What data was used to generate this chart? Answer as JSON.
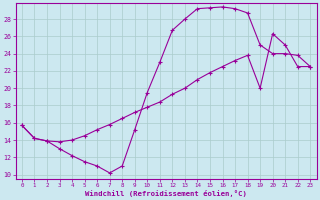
{
  "bg_color": "#cce8f0",
  "line_color": "#990099",
  "grid_color": "#aacccc",
  "xlim": [
    -0.5,
    23.5
  ],
  "ylim": [
    9.5,
    29.8
  ],
  "xticks": [
    0,
    1,
    2,
    3,
    4,
    5,
    6,
    7,
    8,
    9,
    10,
    11,
    12,
    13,
    14,
    15,
    16,
    17,
    18,
    19,
    20,
    21,
    22,
    23
  ],
  "yticks": [
    10,
    12,
    14,
    16,
    18,
    20,
    22,
    24,
    26,
    28
  ],
  "xlabel": "Windchill (Refroidissement éolien,°C)",
  "curve1_x": [
    0,
    1,
    2,
    3,
    4,
    5,
    6,
    7,
    8,
    9,
    10,
    11,
    12,
    13,
    14,
    15,
    16,
    17,
    18,
    19,
    20,
    21,
    22,
    23
  ],
  "curve1_y": [
    15.7,
    14.2,
    13.9,
    13.0,
    12.2,
    11.5,
    11.0,
    10.2,
    11.0,
    15.2,
    19.5,
    23.0,
    26.7,
    28.0,
    29.2,
    29.3,
    29.4,
    29.2,
    28.7,
    25.0,
    24.0,
    24.0,
    23.8,
    22.5
  ],
  "curve2_x": [
    0,
    1,
    2,
    3,
    4,
    5,
    6,
    7,
    8,
    9,
    10,
    11,
    12,
    13,
    14,
    15,
    16,
    17,
    18,
    19,
    20,
    21,
    22,
    23
  ],
  "curve2_y": [
    15.7,
    14.2,
    13.9,
    13.8,
    14.0,
    14.5,
    15.2,
    15.8,
    16.5,
    17.2,
    17.8,
    18.4,
    19.3,
    20.0,
    21.0,
    21.8,
    22.5,
    23.2,
    23.8,
    20.0,
    26.3,
    25.0,
    22.5,
    22.5
  ]
}
